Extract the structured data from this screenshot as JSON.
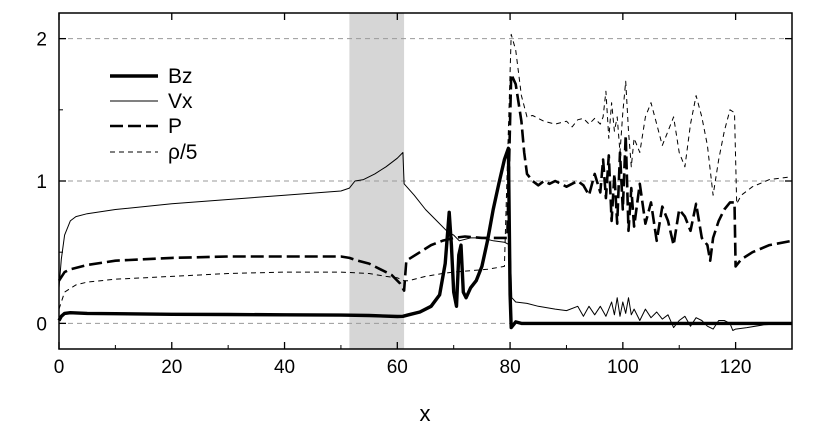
{
  "chart_data": {
    "type": "line",
    "title": "",
    "xlabel": "x",
    "ylabel": "",
    "xlim": [
      0,
      130
    ],
    "ylim": [
      -0.18,
      2.18
    ],
    "xticks": [
      0,
      20,
      40,
      60,
      80,
      100,
      120
    ],
    "yticks": [
      0,
      1,
      2
    ],
    "ygrid": "dashed horizontal lines at y = 0, 1, 2",
    "shaded_region": {
      "x": [
        51.5,
        61.2
      ],
      "color": "#d6d6d6"
    },
    "legend": {
      "position": "top-left"
    },
    "series": [
      {
        "name": "Bz",
        "style": "thick-solid",
        "points": [
          [
            0,
            0.02
          ],
          [
            0.4,
            0.05
          ],
          [
            1,
            0.07
          ],
          [
            2,
            0.075
          ],
          [
            5,
            0.07
          ],
          [
            10,
            0.068
          ],
          [
            20,
            0.064
          ],
          [
            30,
            0.062
          ],
          [
            40,
            0.06
          ],
          [
            50,
            0.058
          ],
          [
            55,
            0.055
          ],
          [
            60,
            0.048
          ],
          [
            61,
            0.05
          ],
          [
            62,
            0.06
          ],
          [
            64,
            0.08
          ],
          [
            66,
            0.12
          ],
          [
            67.5,
            0.2
          ],
          [
            68.5,
            0.42
          ],
          [
            69.2,
            0.78
          ],
          [
            69.6,
            0.55
          ],
          [
            70,
            0.22
          ],
          [
            70.5,
            0.12
          ],
          [
            70.9,
            0.48
          ],
          [
            71.3,
            0.55
          ],
          [
            71.7,
            0.22
          ],
          [
            72.2,
            0.18
          ],
          [
            73,
            0.25
          ],
          [
            74,
            0.3
          ],
          [
            75,
            0.4
          ],
          [
            76,
            0.58
          ],
          [
            77,
            0.8
          ],
          [
            78,
            0.98
          ],
          [
            79,
            1.15
          ],
          [
            79.7,
            1.23
          ],
          [
            80.0,
            0.2
          ],
          [
            80.2,
            -0.03
          ],
          [
            81,
            0.01
          ],
          [
            82,
            0.0
          ],
          [
            90,
            0.0
          ],
          [
            100,
            0.0
          ],
          [
            110,
            0.0
          ],
          [
            120,
            0.0
          ],
          [
            130,
            0.0
          ]
        ]
      },
      {
        "name": "Vx",
        "style": "thin-solid",
        "points": [
          [
            0,
            0.25
          ],
          [
            0.4,
            0.45
          ],
          [
            1,
            0.62
          ],
          [
            2,
            0.72
          ],
          [
            3,
            0.75
          ],
          [
            5,
            0.77
          ],
          [
            10,
            0.8
          ],
          [
            20,
            0.84
          ],
          [
            30,
            0.87
          ],
          [
            40,
            0.9
          ],
          [
            50,
            0.93
          ],
          [
            51.5,
            0.95
          ],
          [
            52.5,
            1.0
          ],
          [
            54,
            1.01
          ],
          [
            56,
            1.05
          ],
          [
            58,
            1.1
          ],
          [
            60,
            1.16
          ],
          [
            61,
            1.2
          ],
          [
            61.2,
            0.98
          ],
          [
            63,
            0.9
          ],
          [
            65,
            0.8
          ],
          [
            67,
            0.72
          ],
          [
            69,
            0.64
          ],
          [
            70,
            0.62
          ],
          [
            71,
            0.58
          ],
          [
            73,
            0.6
          ],
          [
            75,
            0.6
          ],
          [
            77,
            0.58
          ],
          [
            79,
            0.57
          ],
          [
            80,
            0.55
          ],
          [
            80.3,
            0.18
          ],
          [
            81,
            0.15
          ],
          [
            83,
            0.14
          ],
          [
            85,
            0.12
          ],
          [
            88,
            0.1
          ],
          [
            90,
            0.09
          ],
          [
            92,
            0.12
          ],
          [
            93,
            0.05
          ],
          [
            94,
            0.12
          ],
          [
            95,
            0.06
          ],
          [
            96,
            0.12
          ],
          [
            97,
            0.05
          ],
          [
            98,
            0.15
          ],
          [
            98.5,
            0.06
          ],
          [
            99,
            0.18
          ],
          [
            99.5,
            0.05
          ],
          [
            100,
            0.15
          ],
          [
            100.5,
            0.07
          ],
          [
            101,
            0.18
          ],
          [
            101.5,
            0.06
          ],
          [
            102,
            0.1
          ],
          [
            103,
            0.02
          ],
          [
            104,
            0.1
          ],
          [
            105,
            0.04
          ],
          [
            106,
            0.08
          ],
          [
            107,
            0.03
          ],
          [
            108,
            0.06
          ],
          [
            109,
            -0.03
          ],
          [
            110,
            0.02
          ],
          [
            111,
            0.05
          ],
          [
            112,
            -0.02
          ],
          [
            113,
            0.04
          ],
          [
            114,
            0.02
          ],
          [
            115,
            -0.02
          ],
          [
            116,
            -0.04
          ],
          [
            117,
            0.02
          ],
          [
            118,
            0.02
          ],
          [
            119,
            0.0
          ],
          [
            119.5,
            -0.05
          ],
          [
            120,
            -0.04
          ],
          [
            122,
            -0.03
          ],
          [
            125,
            -0.01
          ],
          [
            130,
            0.0
          ]
        ]
      },
      {
        "name": "P",
        "style": "thick-dashed",
        "points": [
          [
            0,
            0.3
          ],
          [
            1,
            0.36
          ],
          [
            2,
            0.38
          ],
          [
            5,
            0.41
          ],
          [
            10,
            0.44
          ],
          [
            20,
            0.46
          ],
          [
            30,
            0.47
          ],
          [
            40,
            0.47
          ],
          [
            50,
            0.47
          ],
          [
            51.5,
            0.46
          ],
          [
            53,
            0.44
          ],
          [
            55,
            0.42
          ],
          [
            57,
            0.38
          ],
          [
            59,
            0.34
          ],
          [
            60.5,
            0.28
          ],
          [
            61.2,
            0.23
          ],
          [
            61.6,
            0.44
          ],
          [
            64,
            0.5
          ],
          [
            66,
            0.55
          ],
          [
            68,
            0.58
          ],
          [
            70,
            0.6
          ],
          [
            72,
            0.61
          ],
          [
            75,
            0.6
          ],
          [
            78,
            0.6
          ],
          [
            79.5,
            0.6
          ],
          [
            80.2,
            1.75
          ],
          [
            81,
            1.68
          ],
          [
            82,
            1.42
          ],
          [
            82.5,
            1.2
          ],
          [
            83,
            1.05
          ],
          [
            84,
            1.0
          ],
          [
            85,
            0.97
          ],
          [
            86,
            1.0
          ],
          [
            87,
            0.98
          ],
          [
            88,
            1.0
          ],
          [
            89,
            0.98
          ],
          [
            90,
            0.96
          ],
          [
            91,
            0.98
          ],
          [
            92,
            1.0
          ],
          [
            93,
            0.97
          ],
          [
            94,
            0.9
          ],
          [
            95,
            1.05
          ],
          [
            96,
            0.92
          ],
          [
            96.5,
            1.15
          ],
          [
            97,
            0.88
          ],
          [
            97.5,
            1.18
          ],
          [
            98,
            0.72
          ],
          [
            98.5,
            1.05
          ],
          [
            99,
            0.7
          ],
          [
            99.5,
            1.2
          ],
          [
            100,
            0.8
          ],
          [
            100.5,
            1.32
          ],
          [
            101,
            0.65
          ],
          [
            101.5,
            0.95
          ],
          [
            102,
            0.68
          ],
          [
            103,
            0.98
          ],
          [
            104,
            0.7
          ],
          [
            105,
            0.85
          ],
          [
            106,
            0.58
          ],
          [
            107,
            0.82
          ],
          [
            108,
            0.72
          ],
          [
            109,
            0.55
          ],
          [
            110,
            0.8
          ],
          [
            111,
            0.75
          ],
          [
            112,
            0.65
          ],
          [
            113,
            0.84
          ],
          [
            114,
            0.6
          ],
          [
            115,
            0.55
          ],
          [
            115.5,
            0.44
          ],
          [
            116,
            0.6
          ],
          [
            117,
            0.72
          ],
          [
            118,
            0.8
          ],
          [
            119,
            0.85
          ],
          [
            119.8,
            0.85
          ],
          [
            120,
            0.4
          ],
          [
            121,
            0.45
          ],
          [
            123,
            0.5
          ],
          [
            126,
            0.55
          ],
          [
            130,
            0.58
          ]
        ]
      },
      {
        "name": "ρ/5",
        "style": "thin-dashed",
        "points": [
          [
            0,
            0.1
          ],
          [
            1,
            0.22
          ],
          [
            3,
            0.27
          ],
          [
            5,
            0.29
          ],
          [
            10,
            0.31
          ],
          [
            20,
            0.33
          ],
          [
            30,
            0.35
          ],
          [
            40,
            0.36
          ],
          [
            50,
            0.36
          ],
          [
            55,
            0.35
          ],
          [
            58,
            0.33
          ],
          [
            60,
            0.32
          ],
          [
            61.2,
            0.3
          ],
          [
            62,
            0.3
          ],
          [
            65,
            0.33
          ],
          [
            68,
            0.35
          ],
          [
            70,
            0.36
          ],
          [
            73,
            0.37
          ],
          [
            76,
            0.38
          ],
          [
            79,
            0.4
          ],
          [
            80.2,
            2.03
          ],
          [
            81,
            1.92
          ],
          [
            82,
            1.6
          ],
          [
            83,
            1.45
          ],
          [
            84,
            1.46
          ],
          [
            86,
            1.42
          ],
          [
            88,
            1.4
          ],
          [
            90,
            1.42
          ],
          [
            91,
            1.38
          ],
          [
            92,
            1.43
          ],
          [
            93,
            1.44
          ],
          [
            94,
            1.4
          ],
          [
            95,
            1.44
          ],
          [
            96,
            1.4
          ],
          [
            96.5,
            1.45
          ],
          [
            97,
            1.63
          ],
          [
            97.5,
            1.3
          ],
          [
            98,
            1.55
          ],
          [
            98.5,
            1.35
          ],
          [
            99,
            1.45
          ],
          [
            99.5,
            1.2
          ],
          [
            100,
            1.48
          ],
          [
            100.5,
            1.7
          ],
          [
            101,
            1.35
          ],
          [
            101.5,
            1.1
          ],
          [
            102,
            1.3
          ],
          [
            103,
            1.2
          ],
          [
            104,
            1.45
          ],
          [
            105,
            1.55
          ],
          [
            106,
            1.4
          ],
          [
            107,
            1.25
          ],
          [
            108,
            1.35
          ],
          [
            109,
            1.45
          ],
          [
            110,
            1.2
          ],
          [
            111,
            1.1
          ],
          [
            112,
            1.4
          ],
          [
            113,
            1.6
          ],
          [
            114,
            1.45
          ],
          [
            115,
            1.25
          ],
          [
            116,
            0.9
          ],
          [
            117,
            1.15
          ],
          [
            118,
            1.35
          ],
          [
            119,
            1.5
          ],
          [
            119.8,
            1.48
          ],
          [
            120.2,
            0.84
          ],
          [
            121,
            0.9
          ],
          [
            123,
            0.96
          ],
          [
            126,
            1.01
          ],
          [
            130,
            1.03
          ]
        ]
      }
    ]
  }
}
